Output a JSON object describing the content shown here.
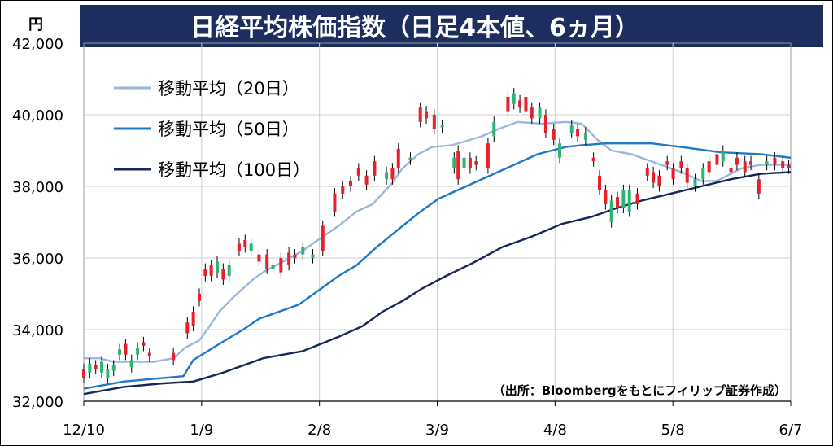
{
  "chart_data": {
    "type": "candlestick",
    "title": "日経平均株価指数（日足4本値、6ヵ月）",
    "unit_label": "円",
    "source": "（出所：Bloombergをもとにフィリップ証券作成）",
    "x_ticks": [
      "12/10",
      "1/9",
      "2/8",
      "3/9",
      "4/8",
      "5/8",
      "6/7"
    ],
    "y_ticks": [
      "32,000",
      "34,000",
      "36,000",
      "38,000",
      "40,000",
      "42,000"
    ],
    "ylim": [
      32000,
      42000
    ],
    "grid": true,
    "legend_position": "top-left",
    "colors": {
      "title_bg": "#1c2d5e",
      "up": "#2bb673",
      "down": "#e8202a",
      "wick": "#000000",
      "ma20": "#9ab7dc",
      "ma50": "#1f78c8",
      "ma100": "#17275e",
      "grid": "#cfcfcf"
    },
    "series": [
      {
        "name": "移動平均（20日）",
        "values": [
          [
            0,
            33200
          ],
          [
            8,
            33200
          ],
          [
            15,
            33100
          ],
          [
            25,
            33100
          ],
          [
            35,
            33100
          ],
          [
            45,
            33200
          ],
          [
            51,
            33500
          ],
          [
            58,
            33700
          ],
          [
            62,
            34000
          ],
          [
            68,
            34500
          ],
          [
            75,
            34900
          ],
          [
            85,
            35400
          ],
          [
            90,
            35600
          ],
          [
            100,
            35900
          ],
          [
            110,
            36200
          ],
          [
            115,
            36400
          ],
          [
            128,
            36900
          ],
          [
            137,
            37300
          ],
          [
            145,
            37500
          ],
          [
            155,
            38100
          ],
          [
            160,
            38500
          ],
          [
            168,
            38900
          ],
          [
            175,
            39100
          ],
          [
            185,
            39150
          ],
          [
            200,
            39400
          ],
          [
            208,
            39600
          ],
          [
            218,
            39800
          ],
          [
            230,
            39750
          ],
          [
            242,
            39800
          ],
          [
            250,
            39750
          ],
          [
            258,
            39300
          ],
          [
            265,
            39000
          ],
          [
            275,
            38900
          ],
          [
            285,
            38700
          ],
          [
            300,
            38400
          ],
          [
            310,
            38150
          ],
          [
            318,
            38150
          ],
          [
            330,
            38500
          ],
          [
            340,
            38600
          ],
          [
            352,
            38600
          ],
          [
            355,
            38600
          ]
        ]
      },
      {
        "name": "移動平均（50日）",
        "values": [
          [
            0,
            32350
          ],
          [
            10,
            32450
          ],
          [
            20,
            32550
          ],
          [
            30,
            32600
          ],
          [
            40,
            32650
          ],
          [
            50,
            32700
          ],
          [
            55,
            33150
          ],
          [
            68,
            33600
          ],
          [
            80,
            34000
          ],
          [
            88,
            34300
          ],
          [
            98,
            34500
          ],
          [
            108,
            34700
          ],
          [
            118,
            35100
          ],
          [
            128,
            35500
          ],
          [
            137,
            35800
          ],
          [
            147,
            36300
          ],
          [
            158,
            36800
          ],
          [
            168,
            37250
          ],
          [
            178,
            37650
          ],
          [
            188,
            37900
          ],
          [
            198,
            38150
          ],
          [
            208,
            38400
          ],
          [
            218,
            38650
          ],
          [
            228,
            38900
          ],
          [
            242,
            39100
          ],
          [
            250,
            39150
          ],
          [
            262,
            39200
          ],
          [
            285,
            39200
          ],
          [
            300,
            39100
          ],
          [
            320,
            38950
          ],
          [
            340,
            38900
          ],
          [
            355,
            38800
          ]
        ]
      },
      {
        "name": "移動平均（100日）",
        "values": [
          [
            0,
            32200
          ],
          [
            20,
            32400
          ],
          [
            40,
            32500
          ],
          [
            55,
            32550
          ],
          [
            70,
            32800
          ],
          [
            90,
            33200
          ],
          [
            110,
            33400
          ],
          [
            128,
            33800
          ],
          [
            140,
            34100
          ],
          [
            150,
            34500
          ],
          [
            160,
            34800
          ],
          [
            170,
            35150
          ],
          [
            182,
            35500
          ],
          [
            195,
            35850
          ],
          [
            210,
            36300
          ],
          [
            225,
            36600
          ],
          [
            240,
            36950
          ],
          [
            255,
            37150
          ],
          [
            268,
            37400
          ],
          [
            280,
            37600
          ],
          [
            295,
            37800
          ],
          [
            310,
            38000
          ],
          [
            325,
            38200
          ],
          [
            340,
            38350
          ],
          [
            355,
            38400
          ]
        ]
      }
    ],
    "candles": [
      [
        0,
        32900,
        32650
      ],
      [
        3,
        32800,
        33050
      ],
      [
        6,
        33000,
        32900
      ],
      [
        9,
        32800,
        33100
      ],
      [
        12,
        32650,
        32900
      ],
      [
        15,
        32850,
        33000
      ],
      [
        18,
        33300,
        33450
      ],
      [
        21,
        33600,
        33300
      ],
      [
        24,
        32950,
        33150
      ],
      [
        27,
        33300,
        33500
      ],
      [
        30,
        33650,
        33550
      ],
      [
        33,
        33350,
        33250
      ],
      [
        45,
        33350,
        33150
      ],
      [
        52,
        34200,
        33900
      ],
      [
        55,
        34500,
        34100
      ],
      [
        58,
        35000,
        34800
      ],
      [
        61,
        35700,
        35500
      ],
      [
        64,
        35800,
        35500
      ],
      [
        67,
        35600,
        35900
      ],
      [
        70,
        35700,
        35400
      ],
      [
        73,
        35500,
        35800
      ],
      [
        78,
        36400,
        36200
      ],
      [
        81,
        36500,
        36300
      ],
      [
        84,
        36200,
        36400
      ],
      [
        88,
        36100,
        35900
      ],
      [
        92,
        36100,
        35700
      ],
      [
        95,
        35700,
        35800
      ],
      [
        99,
        36000,
        35600
      ],
      [
        103,
        36150,
        35800
      ],
      [
        106,
        36100,
        36000
      ],
      [
        110,
        36100,
        36300
      ],
      [
        115,
        36000,
        36100
      ],
      [
        120,
        36900,
        36200
      ],
      [
        126,
        37800,
        37300
      ],
      [
        130,
        38000,
        37800
      ],
      [
        134,
        38150,
        38000
      ],
      [
        138,
        38500,
        38300
      ],
      [
        142,
        38300,
        38050
      ],
      [
        146,
        38700,
        38300
      ],
      [
        152,
        38200,
        38400
      ],
      [
        155,
        38500,
        38200
      ],
      [
        158,
        39050,
        38500
      ],
      [
        164,
        38750,
        38800
      ],
      [
        169,
        40200,
        39800
      ],
      [
        172,
        40100,
        39900
      ],
      [
        176,
        40000,
        39600
      ],
      [
        180,
        39650,
        39700
      ],
      [
        186,
        38500,
        38800
      ],
      [
        188,
        39000,
        38200
      ],
      [
        191,
        38500,
        38800
      ],
      [
        194,
        38800,
        38500
      ],
      [
        197,
        38700,
        38600
      ],
      [
        203,
        39200,
        38500
      ],
      [
        206,
        39400,
        39800
      ],
      [
        213,
        40500,
        40100
      ],
      [
        216,
        40300,
        40600
      ],
      [
        219,
        40400,
        40200
      ],
      [
        222,
        40500,
        40100
      ],
      [
        225,
        40200,
        39900
      ],
      [
        229,
        39900,
        40200
      ],
      [
        232,
        40000,
        39500
      ],
      [
        236,
        39600,
        39300
      ],
      [
        239,
        38800,
        39200
      ],
      [
        245,
        39500,
        39700
      ],
      [
        248,
        39600,
        39400
      ],
      [
        252,
        39300,
        39500
      ],
      [
        256,
        38800,
        38700
      ],
      [
        259,
        38300,
        37900
      ],
      [
        262,
        37900,
        37500
      ],
      [
        265,
        37000,
        37600
      ],
      [
        268,
        37700,
        37400
      ],
      [
        271,
        37400,
        37900
      ],
      [
        274,
        37300,
        37900
      ],
      [
        278,
        37800,
        37500
      ],
      [
        283,
        38500,
        38300
      ],
      [
        286,
        38400,
        38100
      ],
      [
        289,
        38300,
        38000
      ],
      [
        293,
        38700,
        38600
      ],
      [
        296,
        38500,
        38200
      ],
      [
        300,
        38700,
        38500
      ],
      [
        303,
        38500,
        38100
      ],
      [
        307,
        38000,
        38200
      ],
      [
        311,
        38200,
        38500
      ],
      [
        314,
        38700,
        38400
      ],
      [
        318,
        38900,
        38600
      ],
      [
        321,
        38700,
        39000
      ],
      [
        325,
        38500,
        38400
      ],
      [
        328,
        38800,
        38600
      ],
      [
        332,
        38700,
        38400
      ],
      [
        335,
        38700,
        38600
      ],
      [
        339,
        38200,
        37800
      ],
      [
        343,
        38600,
        38700
      ],
      [
        347,
        38800,
        38600
      ],
      [
        351,
        38700,
        38500
      ],
      [
        354,
        38600,
        38500
      ]
    ]
  }
}
